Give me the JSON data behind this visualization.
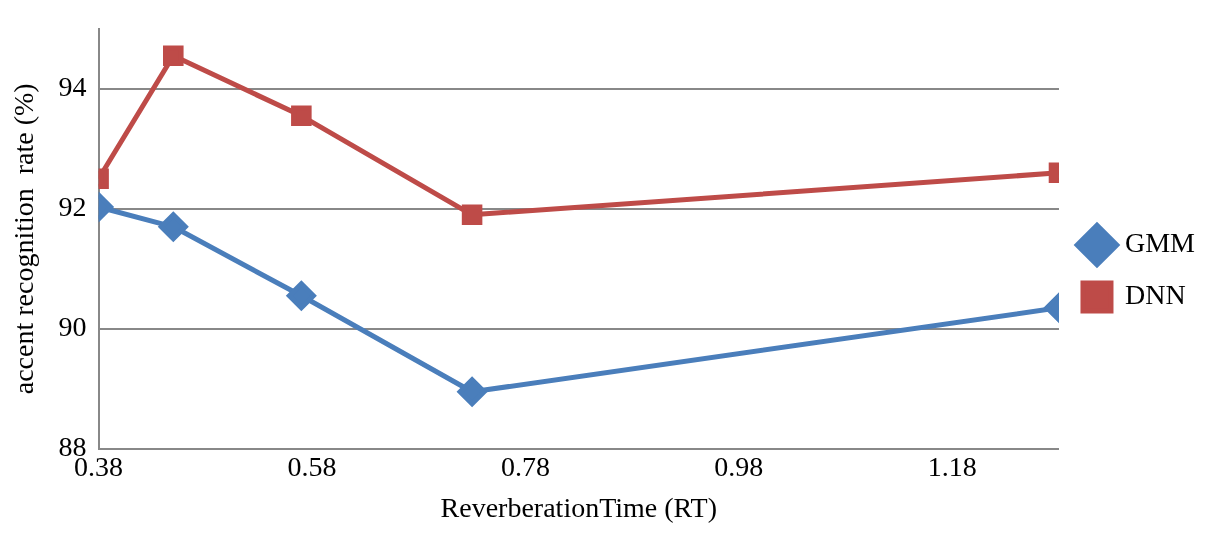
{
  "chart_data": {
    "type": "line",
    "xlabel": "ReverberationTime (RT)",
    "ylabel": "accent recognition  rate (%)",
    "x": [
      0.38,
      0.45,
      0.57,
      0.73,
      1.28
    ],
    "series": [
      {
        "name": "GMM",
        "color": "#4a7ebb",
        "marker": "diamond",
        "values": [
          92.03,
          91.7,
          90.55,
          88.95,
          90.35
        ]
      },
      {
        "name": "DNN",
        "color": "#be4b48",
        "marker": "square",
        "values": [
          92.5,
          94.55,
          93.55,
          91.9,
          92.6
        ]
      }
    ],
    "xlim": [
      0.38,
      1.28
    ],
    "xticks": [
      0.38,
      0.58,
      0.78,
      0.98,
      1.18
    ],
    "ylim": [
      88,
      95
    ],
    "yticks": [
      88,
      90,
      92,
      94
    ],
    "grid": "y",
    "legend": "right",
    "line_style": "solid"
  }
}
